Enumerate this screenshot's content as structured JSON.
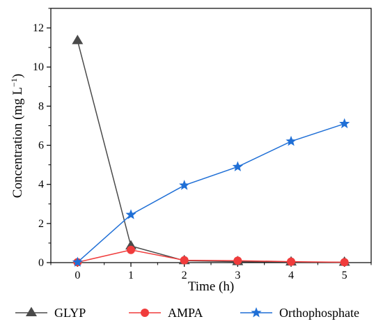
{
  "chart_data": {
    "type": "line",
    "title": "",
    "xlabel": "Time (h)",
    "ylabel_main": "Concentration (mg L",
    "ylabel_sup": "−1",
    "ylabel_close": ")",
    "xlim": [
      -0.5,
      5.5
    ],
    "ylim": [
      0,
      13
    ],
    "xticks": [
      0,
      1,
      2,
      3,
      4,
      5
    ],
    "xtick_labels": [
      "0",
      "1",
      "2",
      "3",
      "4",
      "5"
    ],
    "yticks": [
      0,
      2,
      4,
      6,
      8,
      10,
      12
    ],
    "ytick_labels": [
      "0",
      "2",
      "4",
      "6",
      "8",
      "10",
      "12"
    ],
    "grid": false,
    "legend_position": "bottom",
    "x": [
      0,
      1,
      2,
      3,
      4,
      5
    ],
    "series": [
      {
        "name": "GLYP",
        "marker": "triangle",
        "color": "#4a4a4a",
        "values": [
          11.35,
          0.85,
          0.1,
          0.05,
          0.03,
          0.02
        ]
      },
      {
        "name": "AMPA",
        "marker": "circle",
        "color": "#f03c3c",
        "values": [
          0.02,
          0.65,
          0.12,
          0.1,
          0.05,
          0.02
        ]
      },
      {
        "name": "Orthophosphate",
        "marker": "star",
        "color": "#1f6fd6",
        "values": [
          0.02,
          2.45,
          3.95,
          4.9,
          6.2,
          7.1
        ]
      }
    ]
  }
}
